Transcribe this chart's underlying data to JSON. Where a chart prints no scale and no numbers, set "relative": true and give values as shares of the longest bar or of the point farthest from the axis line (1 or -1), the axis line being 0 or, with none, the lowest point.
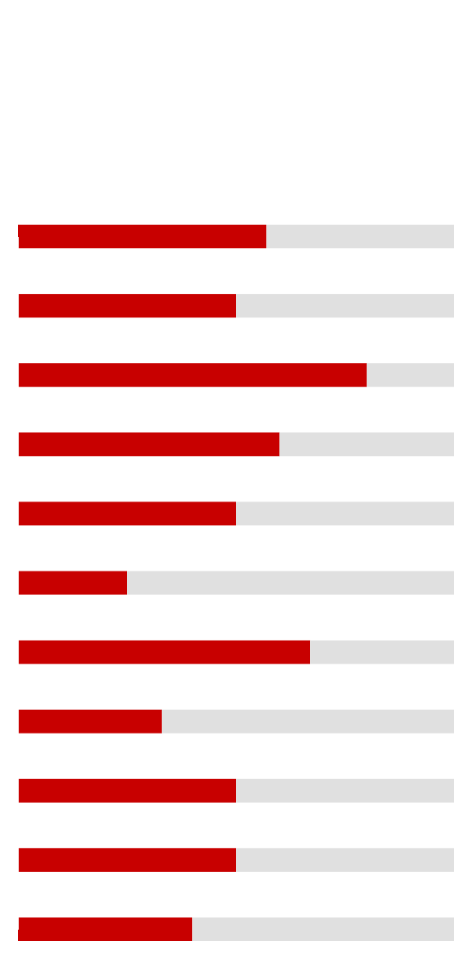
{
  "chart_data": {
    "type": "bar",
    "orientation": "horizontal",
    "stacked": true,
    "relative": true,
    "categories": [
      null,
      null,
      null,
      null,
      null,
      null,
      null,
      null,
      null,
      null,
      null
    ],
    "series": [
      {
        "color": "#c80000",
        "values": [
          0.57,
          0.5,
          0.8,
          0.6,
          0.5,
          0.25,
          0.67,
          0.33,
          0.5,
          0.5,
          0.4
        ]
      },
      {
        "color": "#e0e0e0",
        "values": [
          0.43,
          0.5,
          0.2,
          0.4,
          0.5,
          0.75,
          0.33,
          0.67,
          0.5,
          0.5,
          0.6
        ]
      }
    ]
  }
}
